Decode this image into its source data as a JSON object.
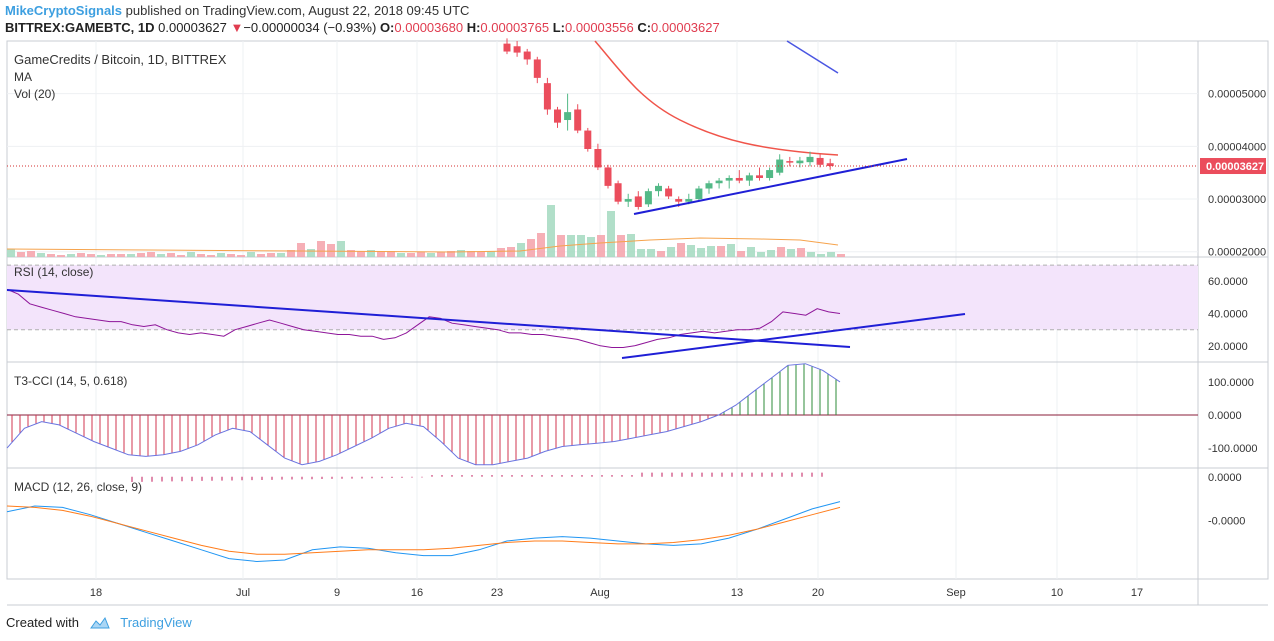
{
  "header": {
    "author": "MikeCryptoSignals",
    "published": "published on TradingView.com, August 22, 2018 09:45 UTC",
    "symbol": "BITTREX:GAMEBTC, 1D",
    "last": "0.00003627",
    "change_arrow": "▼",
    "change": "−0.00000034 (−0.93%)",
    "o_label": "O:",
    "o": "0.00003680",
    "h_label": "H:",
    "h": "0.00003765",
    "l_label": "L:",
    "l": "0.00003556",
    "c_label": "C:",
    "c": "0.00003627"
  },
  "footer": {
    "created_with": "Created with",
    "brand": "TradingView"
  },
  "colors": {
    "up": "#53b987",
    "down": "#eb4d5c",
    "ma": "#f0544a",
    "ma_slow": "#4a56e2",
    "trendline": "#1f1fd6",
    "rsi": "#8e1599",
    "rsi_band": "#f3e4fb",
    "cci": "#6a74e0",
    "cci_hist_neg": "#d0354f",
    "cci_hist_pos": "#2e8b3a",
    "macd": "#2196f3",
    "signal": "#ff7c1a",
    "macd_hist": "#c2185b",
    "price_line": "#d32f2f",
    "price_tag": "#eb4d5c",
    "grid": "#eef0f3"
  },
  "chart_data": [
    {
      "type": "candlestick",
      "title": "GameCredits / Bitcoin, 1D, BITTREX",
      "legend": [
        "MA",
        "Vol (20)"
      ],
      "x_ticks": [
        "18",
        "Jul",
        "9",
        "16",
        "23",
        "Aug",
        "13",
        "20",
        "Sep",
        "10",
        "17"
      ],
      "y_ticks": [
        "0.00005000",
        "0.00004000",
        "0.00003000",
        "0.00002000"
      ],
      "y_range": [
        1.9e-05,
        6e-05
      ],
      "last_price": "0.00003627",
      "candles": [
        {
          "date": "2018-07-23",
          "o": 5.95,
          "h": 6.05,
          "l": 5.75,
          "c": 5.8
        },
        {
          "date": "2018-07-24",
          "o": 5.9,
          "h": 6.0,
          "l": 5.7,
          "c": 5.78
        },
        {
          "date": "2018-07-25",
          "o": 5.8,
          "h": 5.85,
          "l": 5.55,
          "c": 5.65
        },
        {
          "date": "2018-07-26",
          "o": 5.65,
          "h": 5.7,
          "l": 5.2,
          "c": 5.3
        },
        {
          "date": "2018-07-27",
          "o": 5.2,
          "h": 5.3,
          "l": 4.6,
          "c": 4.7
        },
        {
          "date": "2018-07-28",
          "o": 4.7,
          "h": 4.75,
          "l": 4.35,
          "c": 4.45
        },
        {
          "date": "2018-07-29",
          "o": 4.5,
          "h": 5.0,
          "l": 4.3,
          "c": 4.65
        },
        {
          "date": "2018-07-30",
          "o": 4.7,
          "h": 4.8,
          "l": 4.25,
          "c": 4.3
        },
        {
          "date": "2018-07-31",
          "o": 4.3,
          "h": 4.35,
          "l": 3.9,
          "c": 3.95
        },
        {
          "date": "2018-08-01",
          "o": 3.95,
          "h": 4.05,
          "l": 3.55,
          "c": 3.6
        },
        {
          "date": "2018-08-02",
          "o": 3.6,
          "h": 3.65,
          "l": 3.2,
          "c": 3.25
        },
        {
          "date": "2018-08-03",
          "o": 3.3,
          "h": 3.35,
          "l": 2.9,
          "c": 2.95
        },
        {
          "date": "2018-08-04",
          "o": 2.95,
          "h": 3.1,
          "l": 2.85,
          "c": 3.0
        },
        {
          "date": "2018-08-05",
          "o": 3.05,
          "h": 3.15,
          "l": 2.8,
          "c": 2.85
        },
        {
          "date": "2018-08-06",
          "o": 2.9,
          "h": 3.2,
          "l": 2.85,
          "c": 3.15
        },
        {
          "date": "2018-08-07",
          "o": 3.15,
          "h": 3.3,
          "l": 3.05,
          "c": 3.25
        },
        {
          "date": "2018-08-08",
          "o": 3.2,
          "h": 3.25,
          "l": 3.0,
          "c": 3.05
        },
        {
          "date": "2018-08-09",
          "o": 3.0,
          "h": 3.05,
          "l": 2.85,
          "c": 2.95
        },
        {
          "date": "2018-08-10",
          "o": 2.95,
          "h": 3.1,
          "l": 2.9,
          "c": 3.0
        },
        {
          "date": "2018-08-11",
          "o": 3.0,
          "h": 3.25,
          "l": 2.95,
          "c": 3.2
        },
        {
          "date": "2018-08-12",
          "o": 3.2,
          "h": 3.35,
          "l": 3.1,
          "c": 3.3
        },
        {
          "date": "2018-08-13",
          "o": 3.3,
          "h": 3.4,
          "l": 3.2,
          "c": 3.35
        },
        {
          "date": "2018-08-14",
          "o": 3.35,
          "h": 3.45,
          "l": 3.2,
          "c": 3.4
        },
        {
          "date": "2018-08-15",
          "o": 3.4,
          "h": 3.55,
          "l": 3.3,
          "c": 3.35
        },
        {
          "date": "2018-08-16",
          "o": 3.35,
          "h": 3.5,
          "l": 3.25,
          "c": 3.45
        },
        {
          "date": "2018-08-17",
          "o": 3.45,
          "h": 3.6,
          "l": 3.35,
          "c": 3.4
        },
        {
          "date": "2018-08-18",
          "o": 3.4,
          "h": 3.6,
          "l": 3.35,
          "c": 3.55
        },
        {
          "date": "2018-08-19",
          "o": 3.5,
          "h": 3.85,
          "l": 3.45,
          "c": 3.75
        },
        {
          "date": "2018-08-20",
          "o": 3.72,
          "h": 3.8,
          "l": 3.62,
          "c": 3.7
        },
        {
          "date": "2018-08-21",
          "o": 3.68,
          "h": 3.8,
          "l": 3.6,
          "c": 3.73
        },
        {
          "date": "2018-08-21b",
          "o": 3.7,
          "h": 3.9,
          "l": 3.62,
          "c": 3.8
        },
        {
          "date": "2018-08-22a",
          "o": 3.78,
          "h": 3.85,
          "l": 3.6,
          "c": 3.65
        },
        {
          "date": "2018-08-22",
          "o": 3.68,
          "h": 3.765,
          "l": 3.556,
          "c": 3.627
        }
      ],
      "candle_scale": "1e-5 BTC"
    },
    {
      "type": "line",
      "title": "RSI (14, close)",
      "y_ticks": [
        "60.0000",
        "40.0000",
        "20.0000"
      ],
      "y_range": [
        10,
        75
      ],
      "band": [
        30,
        70
      ],
      "values": [
        55,
        52,
        46,
        44,
        42,
        40,
        38,
        37,
        36,
        35,
        35,
        33,
        32,
        33,
        30,
        28,
        27,
        28,
        27,
        26,
        30,
        32,
        34,
        36,
        34,
        32,
        30,
        29,
        28,
        27,
        27,
        26,
        26,
        24,
        25,
        28,
        33,
        38,
        37,
        34,
        33,
        32,
        31,
        30,
        28,
        28,
        27,
        27,
        26,
        25,
        24,
        22,
        20,
        19,
        19,
        20,
        22,
        24,
        25,
        27,
        28,
        29,
        28,
        29,
        30,
        30,
        31,
        35,
        41,
        40,
        39,
        43,
        41,
        40
      ]
    },
    {
      "type": "line",
      "title": "T3-CCI (14, 5, 0.618)",
      "y_ticks": [
        "100.0000",
        "0.0000",
        "-100.0000"
      ],
      "y_range": [
        -160,
        160
      ],
      "values": [
        -100,
        -40,
        -20,
        -30,
        -55,
        -80,
        -100,
        -120,
        -125,
        -120,
        -110,
        -90,
        -60,
        -40,
        -50,
        -90,
        -130,
        -150,
        -140,
        -120,
        -95,
        -70,
        -40,
        -25,
        -35,
        -80,
        -130,
        -150,
        -150,
        -140,
        -130,
        -110,
        -95,
        -90,
        -85,
        -80,
        -70,
        -60,
        -50,
        -35,
        -20,
        0,
        30,
        70,
        110,
        150,
        155,
        135,
        100
      ]
    },
    {
      "type": "line",
      "title": "MACD (12, 26, close, 9)",
      "y_ticks": [
        "0.0000",
        "-0.0000"
      ],
      "y_range": [
        -3.5e-06,
        3e-07
      ],
      "macd": [
        -1.2,
        -1.0,
        -1.05,
        -1.3,
        -1.6,
        -1.9,
        -2.2,
        -2.5,
        -2.8,
        -2.9,
        -2.85,
        -2.5,
        -2.4,
        -2.45,
        -2.6,
        -2.7,
        -2.7,
        -2.5,
        -2.2,
        -2.1,
        -2.05,
        -2.1,
        -2.2,
        -2.3,
        -2.35,
        -2.3,
        -2.1,
        -1.8,
        -1.45,
        -1.1,
        -0.85
      ],
      "signal": [
        -1.0,
        -1.05,
        -1.15,
        -1.35,
        -1.6,
        -1.85,
        -2.1,
        -2.35,
        -2.55,
        -2.65,
        -2.65,
        -2.6,
        -2.55,
        -2.5,
        -2.5,
        -2.5,
        -2.45,
        -2.35,
        -2.25,
        -2.2,
        -2.2,
        -2.25,
        -2.3,
        -2.3,
        -2.25,
        -2.15,
        -2.0,
        -1.8,
        -1.55,
        -1.3,
        -1.05
      ],
      "macd_unit": "1e-6",
      "x_ticks": [
        "18",
        "Jul",
        "9",
        "16",
        "23",
        "Aug",
        "13",
        "20",
        "Sep",
        "10",
        "17"
      ]
    }
  ]
}
